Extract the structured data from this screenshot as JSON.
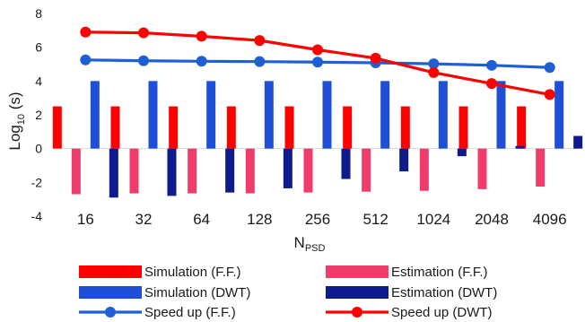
{
  "chart_data": {
    "type": "bar",
    "categories": [
      "16",
      "32",
      "64",
      "128",
      "256",
      "512",
      "1024",
      "2048",
      "4096"
    ],
    "xlabel": {
      "main": "N",
      "subscript": "PSD"
    },
    "ylabel": {
      "main": "Log",
      "subscript": "10",
      "suffix": " (s)"
    },
    "ylim": [
      -4,
      8
    ],
    "yticks": [
      -4,
      -2,
      0,
      2,
      4,
      6,
      8
    ],
    "grid": false,
    "legend_position": "bottom",
    "series": [
      {
        "name": "Simulation (F.F.)",
        "kind": "bar",
        "color": "#ff0000",
        "values": [
          2.5,
          2.5,
          2.5,
          2.5,
          2.5,
          2.5,
          2.5,
          2.5,
          2.5
        ]
      },
      {
        "name": "Estimation (F.F.)",
        "kind": "bar",
        "color": "#f03c6a",
        "values": [
          -2.7,
          -2.65,
          -2.65,
          -2.65,
          -2.6,
          -2.55,
          -2.5,
          -2.4,
          -2.25
        ]
      },
      {
        "name": "Simulation (DWT)",
        "kind": "bar",
        "color": "#1f4fd6",
        "values": [
          4.0,
          4.0,
          4.0,
          4.0,
          4.0,
          4.0,
          4.0,
          4.0,
          4.0
        ]
      },
      {
        "name": "Estimation (DWT)",
        "kind": "bar",
        "color": "#0f1a8c",
        "values": [
          -2.9,
          -2.8,
          -2.6,
          -2.35,
          -1.8,
          -1.35,
          -0.45,
          0.15,
          0.75
        ]
      },
      {
        "name": "Speed up (F.F.)",
        "kind": "line",
        "color": "#1f5fd6",
        "values": [
          5.25,
          5.2,
          5.17,
          5.15,
          5.12,
          5.08,
          5.02,
          4.93,
          4.8
        ]
      },
      {
        "name": "Speed up (DWT)",
        "kind": "line",
        "color": "#ff0000",
        "values": [
          6.9,
          6.85,
          6.65,
          6.4,
          5.85,
          5.35,
          4.5,
          3.85,
          3.2
        ]
      }
    ]
  }
}
